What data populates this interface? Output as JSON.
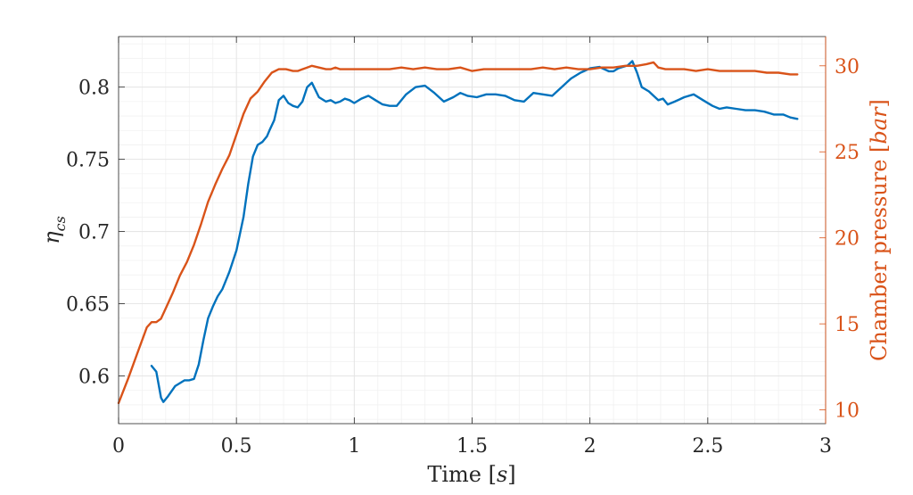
{
  "chart_data": {
    "type": "line",
    "xlabel": "Time [s]",
    "ylabel_left": "η_cs",
    "ylabel_right": "Chamber pressure [bar]",
    "xlim": [
      0,
      3
    ],
    "ylim_left": [
      0.567,
      0.835
    ],
    "ylim_right": [
      9.2,
      31.7
    ],
    "x_ticks": [
      0,
      0.5,
      1,
      1.5,
      2,
      2.5,
      3
    ],
    "x_tick_labels": [
      "0",
      "0.5",
      "1",
      "1.5",
      "2",
      "2.5",
      "3"
    ],
    "y_left_ticks": [
      0.6,
      0.65,
      0.7,
      0.75,
      0.8
    ],
    "y_left_tick_labels": [
      "0.6",
      "0.65",
      "0.7",
      "0.75",
      "0.8"
    ],
    "y_right_ticks": [
      10,
      15,
      20,
      25,
      30
    ],
    "y_right_tick_labels": [
      "10",
      "15",
      "20",
      "25",
      "30"
    ],
    "grid": true,
    "minor_grid": true,
    "colors": {
      "left_axis": "#262626",
      "right_axis": "#d95319",
      "series_eta": "#0072bd",
      "series_pressure": "#d95319"
    },
    "series": [
      {
        "axis": "left",
        "x": [
          0.14,
          0.16,
          0.18,
          0.19,
          0.21,
          0.24,
          0.28,
          0.3,
          0.32,
          0.34,
          0.36,
          0.38,
          0.4,
          0.42,
          0.44,
          0.47,
          0.5,
          0.53,
          0.55,
          0.57,
          0.59,
          0.61,
          0.63,
          0.64,
          0.66,
          0.68,
          0.7,
          0.72,
          0.74,
          0.76,
          0.78,
          0.8,
          0.82,
          0.85,
          0.88,
          0.9,
          0.92,
          0.94,
          0.96,
          0.98,
          1.0,
          1.03,
          1.06,
          1.09,
          1.12,
          1.15,
          1.18,
          1.22,
          1.26,
          1.3,
          1.34,
          1.38,
          1.42,
          1.45,
          1.48,
          1.52,
          1.56,
          1.6,
          1.64,
          1.68,
          1.72,
          1.76,
          1.8,
          1.84,
          1.88,
          1.92,
          1.96,
          2.0,
          2.04,
          2.08,
          2.1,
          2.12,
          2.14,
          2.16,
          2.18,
          2.2,
          2.22,
          2.25,
          2.27,
          2.29,
          2.31,
          2.33,
          2.36,
          2.4,
          2.44,
          2.48,
          2.52,
          2.55,
          2.58,
          2.62,
          2.66,
          2.7,
          2.74,
          2.78,
          2.82,
          2.85,
          2.88
        ],
        "values": [
          0.607,
          0.603,
          0.585,
          0.582,
          0.586,
          0.593,
          0.597,
          0.597,
          0.598,
          0.608,
          0.625,
          0.64,
          0.648,
          0.655,
          0.66,
          0.672,
          0.687,
          0.71,
          0.733,
          0.752,
          0.76,
          0.762,
          0.766,
          0.77,
          0.777,
          0.791,
          0.794,
          0.789,
          0.787,
          0.786,
          0.79,
          0.8,
          0.803,
          0.793,
          0.79,
          0.791,
          0.789,
          0.79,
          0.792,
          0.791,
          0.789,
          0.792,
          0.794,
          0.791,
          0.788,
          0.787,
          0.787,
          0.795,
          0.8,
          0.801,
          0.796,
          0.79,
          0.793,
          0.796,
          0.794,
          0.793,
          0.795,
          0.795,
          0.794,
          0.791,
          0.79,
          0.796,
          0.795,
          0.794,
          0.8,
          0.806,
          0.81,
          0.813,
          0.814,
          0.811,
          0.811,
          0.813,
          0.814,
          0.815,
          0.818,
          0.81,
          0.8,
          0.797,
          0.794,
          0.791,
          0.792,
          0.788,
          0.79,
          0.793,
          0.795,
          0.791,
          0.787,
          0.785,
          0.786,
          0.785,
          0.784,
          0.784,
          0.783,
          0.781,
          0.781,
          0.779,
          0.778
        ],
        "style": "solid"
      },
      {
        "axis": "right",
        "x": [
          0.0,
          0.04,
          0.08,
          0.12,
          0.14,
          0.16,
          0.18,
          0.2,
          0.23,
          0.26,
          0.29,
          0.32,
          0.35,
          0.38,
          0.41,
          0.44,
          0.47,
          0.5,
          0.53,
          0.56,
          0.59,
          0.62,
          0.65,
          0.68,
          0.71,
          0.74,
          0.76,
          0.78,
          0.8,
          0.82,
          0.85,
          0.88,
          0.9,
          0.92,
          0.94,
          0.96,
          0.98,
          1.0,
          1.05,
          1.1,
          1.15,
          1.2,
          1.25,
          1.3,
          1.35,
          1.4,
          1.45,
          1.5,
          1.55,
          1.6,
          1.65,
          1.7,
          1.75,
          1.8,
          1.85,
          1.9,
          1.95,
          2.0,
          2.05,
          2.1,
          2.15,
          2.2,
          2.24,
          2.27,
          2.29,
          2.32,
          2.35,
          2.4,
          2.45,
          2.5,
          2.55,
          2.6,
          2.65,
          2.7,
          2.75,
          2.8,
          2.85,
          2.88
        ],
        "values": [
          10.4,
          11.8,
          13.3,
          14.8,
          15.1,
          15.1,
          15.3,
          15.9,
          16.8,
          17.8,
          18.6,
          19.6,
          20.8,
          22.1,
          23.1,
          24.0,
          24.8,
          26.0,
          27.2,
          28.1,
          28.5,
          29.1,
          29.6,
          29.8,
          29.8,
          29.7,
          29.7,
          29.8,
          29.9,
          30.0,
          29.9,
          29.8,
          29.8,
          29.9,
          29.8,
          29.8,
          29.8,
          29.8,
          29.8,
          29.8,
          29.8,
          29.9,
          29.8,
          29.9,
          29.8,
          29.8,
          29.9,
          29.7,
          29.8,
          29.8,
          29.8,
          29.8,
          29.8,
          29.9,
          29.8,
          29.9,
          29.8,
          29.8,
          29.9,
          29.9,
          30.0,
          30.0,
          30.1,
          30.2,
          29.9,
          29.8,
          29.8,
          29.8,
          29.7,
          29.8,
          29.7,
          29.7,
          29.7,
          29.7,
          29.6,
          29.6,
          29.5,
          29.5
        ],
        "style": "solid"
      }
    ]
  }
}
